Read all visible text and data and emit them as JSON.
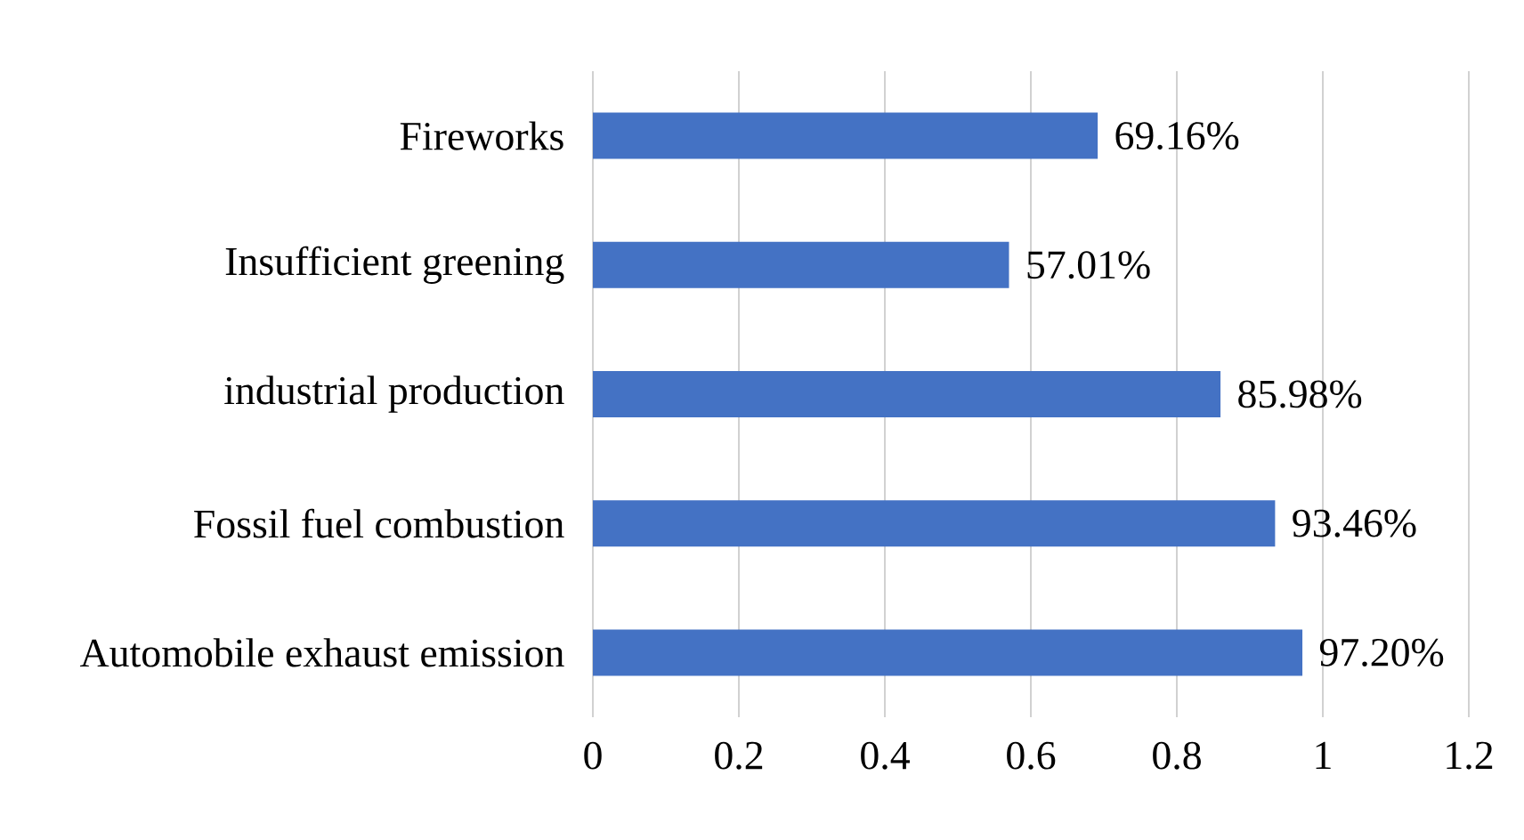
{
  "chart_data": {
    "type": "bar",
    "orientation": "horizontal",
    "categories": [
      "Fireworks",
      "Insufficient greening",
      "industrial production",
      "Fossil fuel combustion",
      "Automobile exhaust emission"
    ],
    "values": [
      0.6916,
      0.5701,
      0.8598,
      0.9346,
      0.972
    ],
    "value_labels": [
      "69.16%",
      "57.01%",
      "85.98%",
      "93.46%",
      "97.20%"
    ],
    "color": "#4472c4",
    "xlim": [
      0,
      1.2
    ],
    "xticks": [
      0,
      0.2,
      0.4,
      0.6,
      0.8,
      1,
      1.2
    ],
    "grid": "x"
  }
}
